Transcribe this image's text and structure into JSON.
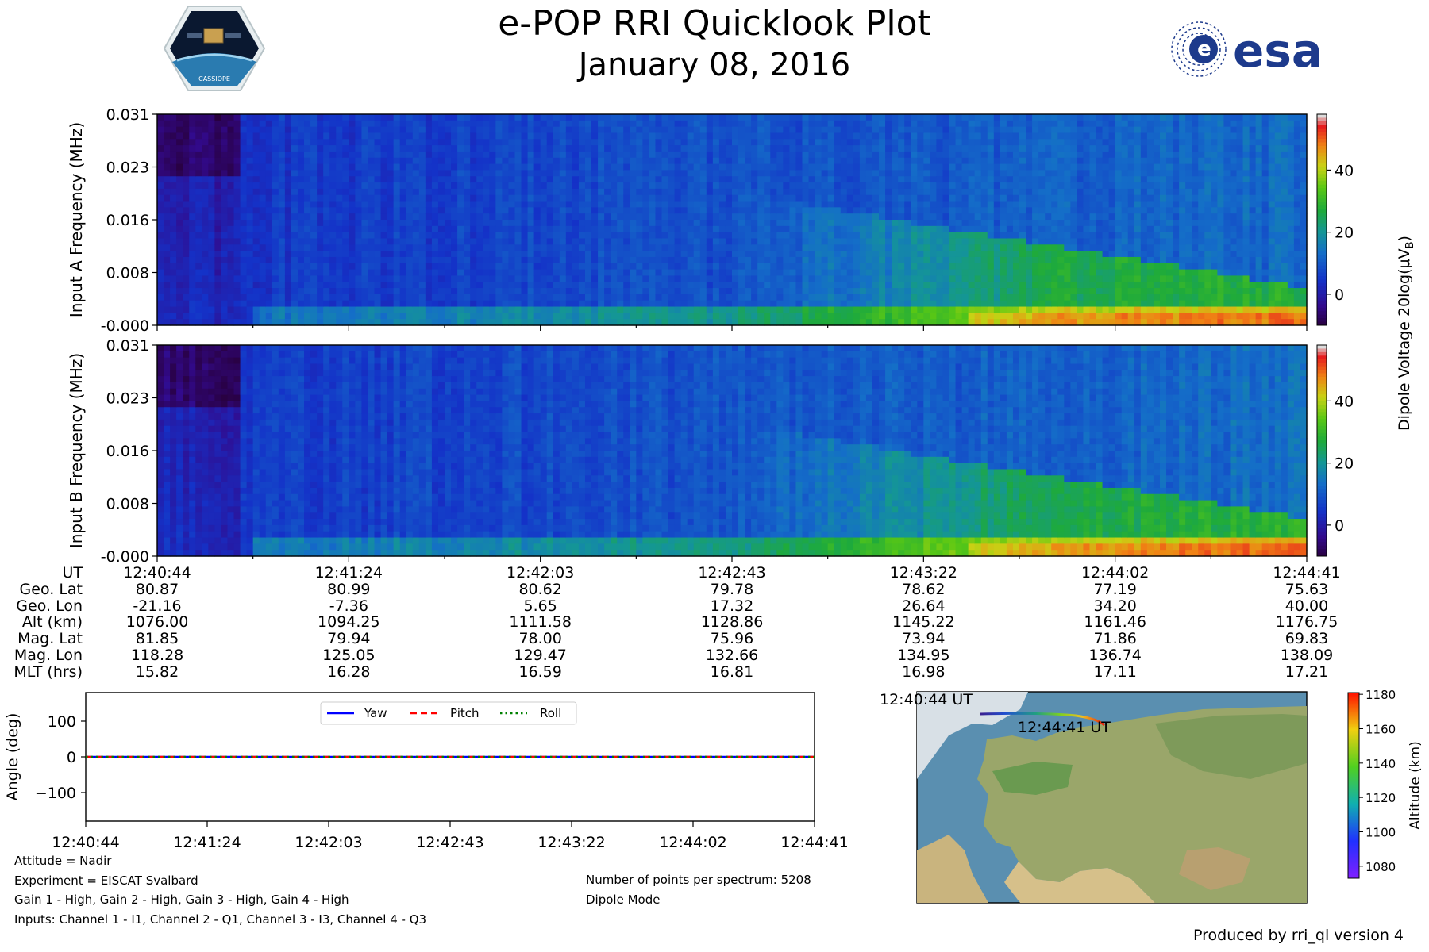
{
  "title": "e-POP RRI Quicklook Plot",
  "subtitle": "January 08, 2016",
  "logos": {
    "left_icon": "cassiope-mission-badge",
    "left_text": "CASSIOPE",
    "right_text": "esa"
  },
  "chart_data": [
    {
      "type": "heatmap",
      "name": "input-a-spectrogram",
      "ylabel": "Input A Frequency (MHz)",
      "yticks": [
        "0.031",
        "0.023",
        "0.016",
        "0.008",
        "-0.000"
      ],
      "ylim": [
        0,
        0.031
      ],
      "x_range": [
        "12:40:44",
        "12:44:41"
      ],
      "colorbar": {
        "ticks": [
          "40",
          "20",
          "0"
        ],
        "range": [
          -10,
          58
        ]
      }
    },
    {
      "type": "heatmap",
      "name": "input-b-spectrogram",
      "ylabel": "Input B Frequency (MHz)",
      "yticks": [
        "0.031",
        "0.023",
        "0.016",
        "0.008",
        "-0.000"
      ],
      "ylim": [
        0,
        0.031
      ],
      "x_range": [
        "12:40:44",
        "12:44:41"
      ],
      "colorbar": {
        "ticks": [
          "40",
          "20",
          "0"
        ],
        "range": [
          -10,
          58
        ]
      }
    },
    {
      "type": "line",
      "name": "attitude",
      "ylabel": "Angle (deg)",
      "ylim": [
        -180,
        180
      ],
      "yticks": [
        "100",
        "0",
        "−100"
      ],
      "x": [
        "12:40:44",
        "12:41:24",
        "12:42:03",
        "12:42:43",
        "12:43:22",
        "12:44:02",
        "12:44:41"
      ],
      "series": [
        {
          "name": "Yaw",
          "values": [
            0,
            0,
            0,
            0,
            0,
            0,
            0
          ],
          "color": "#0000ff"
        },
        {
          "name": "Pitch",
          "values": [
            0,
            0,
            0,
            0,
            0,
            0,
            0
          ],
          "color": "#ff0000"
        },
        {
          "name": "Roll",
          "values": [
            0,
            0,
            0,
            0,
            0,
            0,
            0
          ],
          "color": "#008000"
        }
      ]
    },
    {
      "type": "map",
      "name": "orbit-track",
      "start_label": "12:40:44 UT",
      "end_label": "12:44:41 UT",
      "colorbar_label": "Altitude (km)",
      "colorbar_ticks": [
        "1180",
        "1160",
        "1140",
        "1120",
        "1100",
        "1080"
      ],
      "colorbar_range": [
        1073,
        1181
      ]
    }
  ],
  "colorbar_label_main": "Dipole Voltage 20log(μV",
  "colorbar_label_sub": "B",
  "colorbar_label_end": ")",
  "ephemeris": {
    "labels": [
      "UT",
      "Geo. Lat",
      "Geo. Lon",
      "Alt (km)",
      "Mag. Lat",
      "Mag. Lon",
      "MLT (hrs)"
    ],
    "columns": [
      [
        "12:40:44",
        "80.87",
        "-21.16",
        "1076.00",
        "81.85",
        "118.28",
        "15.82"
      ],
      [
        "12:41:24",
        "80.99",
        "-7.36",
        "1094.25",
        "79.94",
        "125.05",
        "16.28"
      ],
      [
        "12:42:03",
        "80.62",
        "5.65",
        "1111.58",
        "78.00",
        "129.47",
        "16.59"
      ],
      [
        "12:42:43",
        "79.78",
        "17.32",
        "1128.86",
        "75.96",
        "132.66",
        "16.81"
      ],
      [
        "12:43:22",
        "78.62",
        "26.64",
        "1145.22",
        "73.94",
        "134.95",
        "16.98"
      ],
      [
        "12:44:02",
        "77.19",
        "34.20",
        "1161.46",
        "71.86",
        "136.74",
        "17.11"
      ],
      [
        "12:44:41",
        "75.63",
        "40.00",
        "1176.75",
        "69.83",
        "138.09",
        "17.21"
      ]
    ]
  },
  "info_left": [
    "Attitude = Nadir",
    "Experiment = EISCAT Svalbard",
    "Gain 1 - High, Gain 2 - High, Gain 3 - High, Gain 4 - High",
    "Inputs: Channel 1 - I1, Channel 2 - Q1, Channel 3 - I3, Channel 4 - Q3"
  ],
  "info_right": [
    "Number of points per spectrum: 5208",
    "Dipole Mode"
  ],
  "footer": "Produced by rri_ql version 4"
}
